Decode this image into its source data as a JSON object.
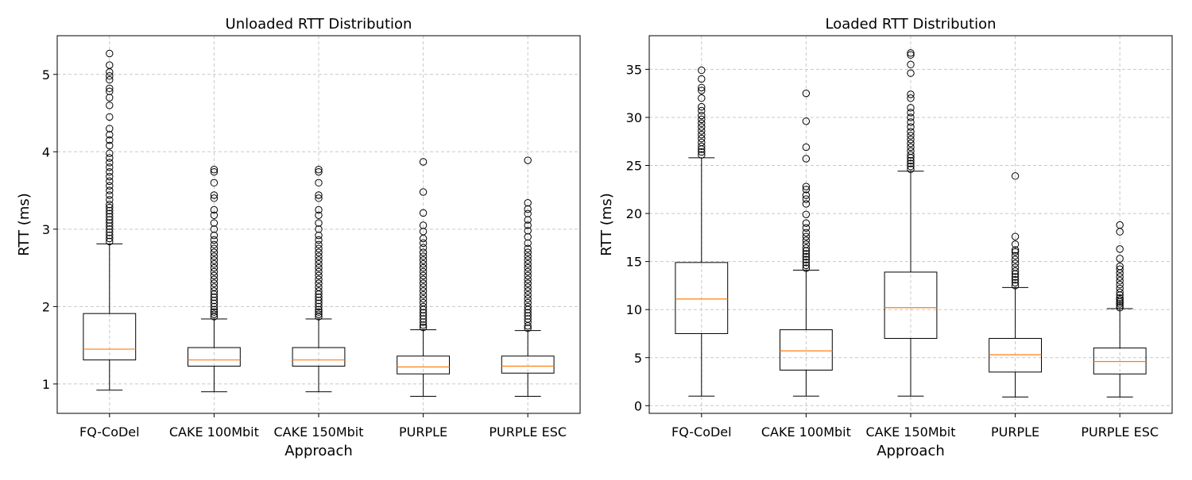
{
  "chart_data": [
    {
      "type": "box",
      "title": "Unloaded RTT Distribution",
      "xlabel": "Approach",
      "ylabel": "RTT (ms)",
      "ylim": [
        0.62,
        5.5
      ],
      "yticks": [
        1,
        2,
        3,
        4,
        5
      ],
      "grid": true,
      "categories": [
        "FQ-CoDel",
        "CAKE 100Mbit",
        "CAKE 150Mbit",
        "PURPLE",
        "PURPLE ESC"
      ],
      "boxes": [
        {
          "whisker_low": 0.92,
          "q1": 1.31,
          "median": 1.45,
          "q3": 1.91,
          "whisker_high": 2.81,
          "outliers": [
            2.84,
            2.88,
            2.92,
            2.96,
            3.0,
            3.04,
            3.08,
            3.12,
            3.16,
            3.2,
            3.24,
            3.28,
            3.32,
            3.38,
            3.44,
            3.5,
            3.56,
            3.62,
            3.68,
            3.74,
            3.8,
            3.86,
            3.92,
            3.98,
            4.08,
            4.15,
            4.22,
            4.3,
            4.45,
            4.6,
            4.7,
            4.78,
            4.82,
            4.93,
            4.98,
            5.03,
            5.12,
            5.27
          ]
        },
        {
          "whisker_low": 0.9,
          "q1": 1.23,
          "median": 1.31,
          "q3": 1.47,
          "whisker_high": 1.84,
          "outliers": [
            1.87,
            1.9,
            1.93,
            1.96,
            2.0,
            2.04,
            2.08,
            2.12,
            2.16,
            2.2,
            2.25,
            2.3,
            2.35,
            2.4,
            2.45,
            2.5,
            2.55,
            2.6,
            2.65,
            2.7,
            2.75,
            2.8,
            2.86,
            2.92,
            3.0,
            3.08,
            3.18,
            3.25,
            3.4,
            3.44,
            3.6,
            3.74,
            3.77
          ]
        },
        {
          "whisker_low": 0.9,
          "q1": 1.23,
          "median": 1.31,
          "q3": 1.47,
          "whisker_high": 1.84,
          "outliers": [
            1.87,
            1.9,
            1.93,
            1.96,
            2.0,
            2.04,
            2.08,
            2.12,
            2.16,
            2.2,
            2.25,
            2.3,
            2.35,
            2.4,
            2.45,
            2.5,
            2.55,
            2.6,
            2.65,
            2.7,
            2.75,
            2.8,
            2.86,
            2.92,
            3.0,
            3.08,
            3.18,
            3.25,
            3.4,
            3.44,
            3.6,
            3.74,
            3.77
          ]
        },
        {
          "whisker_low": 0.84,
          "q1": 1.13,
          "median": 1.22,
          "q3": 1.36,
          "whisker_high": 1.7,
          "outliers": [
            1.73,
            1.76,
            1.8,
            1.84,
            1.88,
            1.92,
            1.96,
            2.0,
            2.05,
            2.1,
            2.15,
            2.2,
            2.25,
            2.3,
            2.35,
            2.4,
            2.45,
            2.5,
            2.55,
            2.6,
            2.65,
            2.7,
            2.76,
            2.82,
            2.88,
            2.97,
            3.05,
            3.21,
            3.48,
            3.87
          ]
        },
        {
          "whisker_low": 0.84,
          "q1": 1.14,
          "median": 1.23,
          "q3": 1.36,
          "whisker_high": 1.69,
          "outliers": [
            1.72,
            1.75,
            1.8,
            1.84,
            1.88,
            1.92,
            1.96,
            2.0,
            2.05,
            2.1,
            2.15,
            2.2,
            2.25,
            2.3,
            2.35,
            2.4,
            2.45,
            2.5,
            2.55,
            2.6,
            2.65,
            2.7,
            2.75,
            2.82,
            2.9,
            2.98,
            3.05,
            3.12,
            3.2,
            3.26,
            3.34,
            3.89
          ]
        }
      ]
    },
    {
      "type": "box",
      "title": "Loaded RTT Distribution",
      "xlabel": "Approach",
      "ylabel": "RTT (ms)",
      "ylim": [
        -0.8,
        38.5
      ],
      "yticks": [
        0,
        5,
        10,
        15,
        20,
        25,
        30,
        35
      ],
      "grid": true,
      "categories": [
        "FQ-CoDel",
        "CAKE 100Mbit",
        "CAKE 150Mbit",
        "PURPLE",
        "PURPLE ESC"
      ],
      "boxes": [
        {
          "whisker_low": 1.0,
          "q1": 7.5,
          "median": 11.1,
          "q3": 14.9,
          "whisker_high": 25.8,
          "outliers": [
            26.1,
            26.4,
            26.7,
            27.0,
            27.4,
            27.8,
            28.2,
            28.6,
            29.0,
            29.4,
            29.8,
            30.2,
            30.7,
            31.1,
            32.0,
            32.8,
            33.1,
            34.0,
            34.9
          ]
        },
        {
          "whisker_low": 1.0,
          "q1": 3.7,
          "median": 5.7,
          "q3": 7.9,
          "whisker_high": 14.1,
          "outliers": [
            14.3,
            14.6,
            14.9,
            15.2,
            15.5,
            15.8,
            16.1,
            16.4,
            16.8,
            17.2,
            17.6,
            18.0,
            18.5,
            19.0,
            19.9,
            21.0,
            21.5,
            21.9,
            22.5,
            22.8,
            25.7,
            26.9,
            29.6,
            32.5
          ]
        },
        {
          "whisker_low": 1.0,
          "q1": 7.0,
          "median": 10.2,
          "q3": 13.9,
          "whisker_high": 24.4,
          "outliers": [
            24.6,
            24.9,
            25.2,
            25.5,
            25.8,
            26.1,
            26.5,
            26.9,
            27.3,
            27.7,
            28.1,
            28.5,
            29.0,
            29.5,
            30.0,
            30.5,
            31.0,
            32.0,
            32.4,
            34.6,
            35.5,
            36.5,
            36.7
          ]
        },
        {
          "whisker_low": 0.9,
          "q1": 3.5,
          "median": 5.3,
          "q3": 7.0,
          "whisker_high": 12.3,
          "outliers": [
            12.5,
            12.8,
            13.1,
            13.4,
            13.7,
            14.0,
            14.4,
            14.8,
            15.2,
            15.6,
            16.0,
            16.2,
            16.8,
            17.6,
            23.9
          ]
        },
        {
          "whisker_low": 0.9,
          "q1": 3.3,
          "median": 4.6,
          "q3": 6.0,
          "whisker_high": 10.1,
          "outliers": [
            10.2,
            10.4,
            10.6,
            10.8,
            11.0,
            11.2,
            11.5,
            11.8,
            12.2,
            12.6,
            13.0,
            13.4,
            13.8,
            14.2,
            14.5,
            15.3,
            16.3,
            18.1,
            18.8
          ]
        }
      ]
    }
  ],
  "colors": {
    "box": "#000000",
    "median": "#ff7f0e",
    "grid": "#c8c8c8",
    "background": "#ffffff"
  }
}
